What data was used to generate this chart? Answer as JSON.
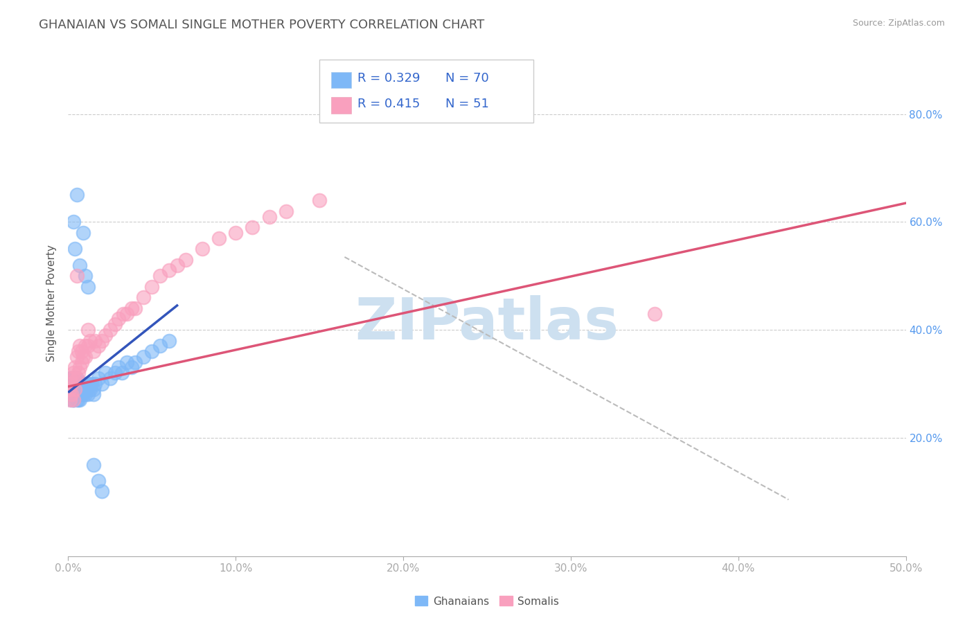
{
  "title": "GHANAIAN VS SOMALI SINGLE MOTHER POVERTY CORRELATION CHART",
  "source_text": "Source: ZipAtlas.com",
  "ylabel": "Single Mother Poverty",
  "xlim": [
    0.0,
    0.5
  ],
  "ylim": [
    -0.02,
    0.92
  ],
  "xticks": [
    0.0,
    0.1,
    0.2,
    0.3,
    0.4,
    0.5
  ],
  "xtick_labels": [
    "0.0%",
    "10.0%",
    "20.0%",
    "30.0%",
    "40.0%",
    "50.0%"
  ],
  "ytick_positions": [
    0.2,
    0.4,
    0.6,
    0.8
  ],
  "ytick_labels": [
    "20.0%",
    "40.0%",
    "60.0%",
    "80.0%"
  ],
  "ghanaian_R": 0.329,
  "ghanaian_N": 70,
  "somali_R": 0.415,
  "somali_N": 51,
  "ghanaian_color": "#7eb8f7",
  "somali_color": "#f9a0be",
  "ghanaian_line_color": "#3355bb",
  "somali_line_color": "#dd5577",
  "trend_line_dashed_color": "#bbbbbb",
  "watermark": "ZIPatlas",
  "watermark_color": "#cde0f0",
  "background_color": "#ffffff",
  "grid_color": "#cccccc",
  "title_color": "#555555",
  "axis_tick_color": "#aaaaaa",
  "right_tick_color": "#5599ee",
  "title_fontsize": 13,
  "axis_label_fontsize": 11,
  "tick_fontsize": 11,
  "legend_fontsize": 13,
  "watermark_fontsize": 60,
  "ghanaian_x": [
    0.0005,
    0.001,
    0.001,
    0.001,
    0.001,
    0.002,
    0.002,
    0.002,
    0.002,
    0.002,
    0.003,
    0.003,
    0.003,
    0.003,
    0.003,
    0.003,
    0.004,
    0.004,
    0.004,
    0.004,
    0.005,
    0.005,
    0.005,
    0.005,
    0.005,
    0.006,
    0.006,
    0.006,
    0.007,
    0.007,
    0.007,
    0.008,
    0.008,
    0.008,
    0.009,
    0.009,
    0.01,
    0.01,
    0.011,
    0.012,
    0.012,
    0.013,
    0.014,
    0.015,
    0.015,
    0.016,
    0.018,
    0.02,
    0.022,
    0.025,
    0.028,
    0.03,
    0.032,
    0.035,
    0.038,
    0.04,
    0.045,
    0.05,
    0.055,
    0.06,
    0.003,
    0.004,
    0.005,
    0.007,
    0.009,
    0.01,
    0.012,
    0.015,
    0.018,
    0.02
  ],
  "ghanaian_y": [
    0.29,
    0.28,
    0.3,
    0.29,
    0.31,
    0.27,
    0.29,
    0.3,
    0.28,
    0.31,
    0.27,
    0.28,
    0.3,
    0.29,
    0.31,
    0.27,
    0.28,
    0.29,
    0.31,
    0.3,
    0.27,
    0.28,
    0.29,
    0.3,
    0.31,
    0.27,
    0.28,
    0.3,
    0.27,
    0.29,
    0.3,
    0.28,
    0.29,
    0.3,
    0.28,
    0.29,
    0.28,
    0.3,
    0.29,
    0.28,
    0.3,
    0.29,
    0.3,
    0.28,
    0.29,
    0.3,
    0.31,
    0.3,
    0.32,
    0.31,
    0.32,
    0.33,
    0.32,
    0.34,
    0.33,
    0.34,
    0.35,
    0.36,
    0.37,
    0.38,
    0.6,
    0.55,
    0.65,
    0.52,
    0.58,
    0.5,
    0.48,
    0.15,
    0.12,
    0.1
  ],
  "somali_x": [
    0.0005,
    0.001,
    0.001,
    0.002,
    0.002,
    0.003,
    0.003,
    0.003,
    0.004,
    0.004,
    0.005,
    0.005,
    0.006,
    0.006,
    0.007,
    0.007,
    0.008,
    0.008,
    0.009,
    0.01,
    0.01,
    0.012,
    0.013,
    0.015,
    0.016,
    0.018,
    0.02,
    0.022,
    0.025,
    0.028,
    0.03,
    0.033,
    0.035,
    0.038,
    0.04,
    0.045,
    0.05,
    0.055,
    0.06,
    0.065,
    0.07,
    0.08,
    0.09,
    0.1,
    0.11,
    0.12,
    0.13,
    0.15,
    0.005,
    0.012,
    0.35
  ],
  "somali_y": [
    0.29,
    0.27,
    0.31,
    0.28,
    0.3,
    0.27,
    0.31,
    0.32,
    0.29,
    0.33,
    0.31,
    0.35,
    0.32,
    0.36,
    0.33,
    0.37,
    0.34,
    0.36,
    0.35,
    0.35,
    0.37,
    0.37,
    0.38,
    0.36,
    0.38,
    0.37,
    0.38,
    0.39,
    0.4,
    0.41,
    0.42,
    0.43,
    0.43,
    0.44,
    0.44,
    0.46,
    0.48,
    0.5,
    0.51,
    0.52,
    0.53,
    0.55,
    0.57,
    0.58,
    0.59,
    0.61,
    0.62,
    0.64,
    0.5,
    0.4,
    0.43
  ],
  "ghanaian_trend_x": [
    0.0005,
    0.065
  ],
  "ghanaian_trend_y": [
    0.285,
    0.445
  ],
  "somali_trend_x": [
    0.0005,
    0.5
  ],
  "somali_trend_y": [
    0.295,
    0.635
  ],
  "dashed_line_x": [
    0.165,
    0.43
  ],
  "dashed_line_y": [
    0.535,
    0.085
  ]
}
